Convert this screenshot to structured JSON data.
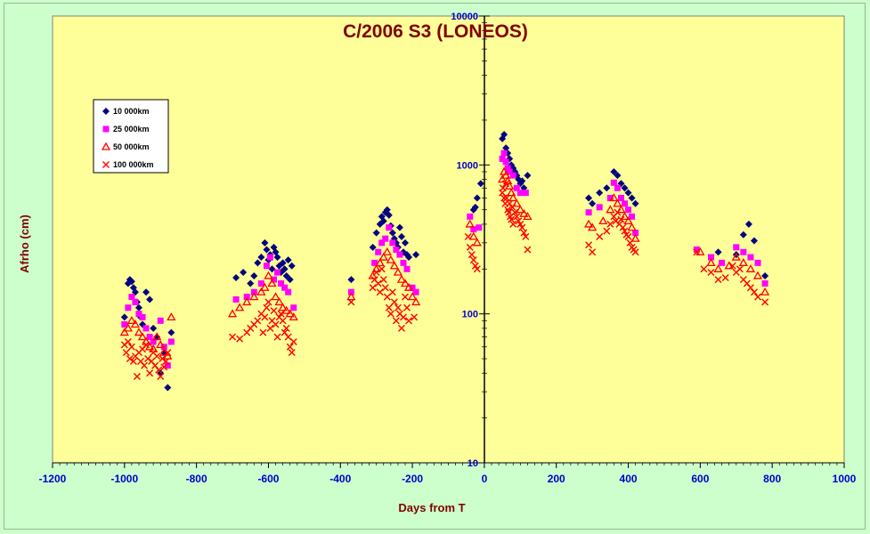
{
  "chart_data": {
    "type": "scatter",
    "title": "C/2006 S3 (LONEOS)",
    "xlabel": "Days from  T",
    "ylabel": "Afrho (cm)",
    "xlim": [
      -1200,
      1000
    ],
    "ylim": [
      10,
      10000
    ],
    "yscale": "log",
    "x_ticks": [
      -1200,
      -1000,
      -800,
      -600,
      -400,
      -200,
      0,
      200,
      400,
      600,
      800,
      1000
    ],
    "y_ticks": [
      10,
      100,
      1000,
      10000
    ],
    "legend_position": "top-left",
    "background": "#ffff99",
    "series": [
      {
        "name": "10 000km",
        "marker": "diamond",
        "color": "#000080",
        "x": [
          -1000,
          -990,
          -985,
          -980,
          -975,
          -970,
          -965,
          -960,
          -955,
          -950,
          -940,
          -930,
          -920,
          -910,
          -900,
          -890,
          -880,
          -870,
          -690,
          -670,
          -650,
          -640,
          -630,
          -620,
          -610,
          -605,
          -600,
          -595,
          -590,
          -585,
          -580,
          -575,
          -570,
          -565,
          -560,
          -555,
          -550,
          -545,
          -540,
          -535,
          -370,
          -310,
          -300,
          -290,
          -285,
          -280,
          -275,
          -270,
          -265,
          -260,
          -255,
          -250,
          -245,
          -240,
          -235,
          -230,
          -225,
          -220,
          -215,
          -210,
          -190,
          -30,
          -25,
          -20,
          -10,
          50,
          55,
          60,
          65,
          70,
          75,
          80,
          85,
          90,
          95,
          100,
          105,
          110,
          120,
          290,
          300,
          320,
          340,
          360,
          370,
          380,
          390,
          400,
          410,
          420,
          650,
          700,
          720,
          735,
          750,
          780
        ],
        "y": [
          95,
          160,
          170,
          165,
          150,
          140,
          120,
          110,
          95,
          85,
          140,
          125,
          80,
          70,
          40,
          55,
          32,
          75,
          175,
          190,
          160,
          180,
          220,
          240,
          300,
          270,
          230,
          250,
          200,
          280,
          260,
          240,
          210,
          190,
          220,
          200,
          180,
          230,
          170,
          210,
          170,
          280,
          350,
          400,
          450,
          420,
          480,
          500,
          460,
          390,
          350,
          320,
          300,
          280,
          380,
          330,
          260,
          300,
          250,
          240,
          250,
          500,
          520,
          600,
          750,
          1500,
          1600,
          1300,
          1200,
          1100,
          1000,
          950,
          900,
          850,
          800,
          750,
          780,
          700,
          850,
          600,
          550,
          650,
          700,
          900,
          850,
          750,
          700,
          650,
          600,
          550,
          260,
          250,
          340,
          400,
          310,
          180
        ]
      },
      {
        "name": "25 000km",
        "marker": "square",
        "color": "#ff00ff",
        "x": [
          -1000,
          -990,
          -980,
          -970,
          -960,
          -950,
          -940,
          -930,
          -920,
          -900,
          -890,
          -880,
          -870,
          -690,
          -660,
          -640,
          -620,
          -605,
          -595,
          -585,
          -575,
          -565,
          -555,
          -545,
          -530,
          -370,
          -305,
          -295,
          -285,
          -275,
          -265,
          -255,
          -245,
          -235,
          -225,
          -215,
          -200,
          -190,
          -40,
          -30,
          -15,
          50,
          55,
          60,
          65,
          70,
          80,
          90,
          100,
          115,
          290,
          320,
          350,
          360,
          370,
          380,
          390,
          400,
          410,
          420,
          590,
          630,
          660,
          700,
          720,
          740,
          760,
          780
        ],
        "y": [
          85,
          110,
          130,
          120,
          100,
          95,
          80,
          70,
          65,
          90,
          60,
          45,
          65,
          125,
          130,
          140,
          160,
          210,
          240,
          170,
          190,
          160,
          150,
          140,
          110,
          140,
          220,
          260,
          300,
          320,
          380,
          300,
          270,
          250,
          220,
          200,
          150,
          140,
          450,
          370,
          380,
          1100,
          1200,
          1050,
          950,
          900,
          850,
          700,
          650,
          650,
          480,
          520,
          600,
          760,
          700,
          600,
          550,
          500,
          450,
          350,
          270,
          240,
          220,
          280,
          260,
          240,
          220,
          160
        ]
      },
      {
        "name": "50 000km",
        "marker": "triangle",
        "color": "#ff0000",
        "x": [
          -1000,
          -990,
          -980,
          -970,
          -960,
          -950,
          -940,
          -930,
          -920,
          -910,
          -900,
          -890,
          -880,
          -870,
          -700,
          -680,
          -660,
          -640,
          -620,
          -610,
          -600,
          -590,
          -580,
          -570,
          -560,
          -550,
          -540,
          -530,
          -370,
          -310,
          -300,
          -290,
          -280,
          -270,
          -260,
          -250,
          -240,
          -230,
          -220,
          -210,
          -200,
          -190,
          -40,
          -30,
          -20,
          50,
          55,
          60,
          65,
          70,
          75,
          80,
          90,
          100,
          110,
          120,
          290,
          300,
          330,
          350,
          360,
          370,
          380,
          390,
          400,
          410,
          420,
          600,
          630,
          650,
          680,
          700,
          720,
          740,
          760,
          780
        ],
        "y": [
          75,
          80,
          90,
          85,
          75,
          70,
          65,
          60,
          58,
          70,
          62,
          55,
          52,
          95,
          100,
          110,
          120,
          130,
          140,
          150,
          180,
          160,
          130,
          120,
          110,
          105,
          100,
          95,
          130,
          180,
          200,
          220,
          240,
          260,
          230,
          210,
          190,
          170,
          160,
          150,
          130,
          120,
          400,
          330,
          300,
          800,
          900,
          850,
          780,
          720,
          650,
          600,
          550,
          500,
          470,
          450,
          400,
          380,
          420,
          500,
          600,
          550,
          500,
          450,
          420,
          380,
          320,
          260,
          220,
          200,
          210,
          240,
          220,
          200,
          180,
          140
        ]
      },
      {
        "name": "100 000km",
        "marker": "x",
        "color": "#ff0000",
        "x": [
          -1000,
          -995,
          -990,
          -985,
          -980,
          -975,
          -970,
          -965,
          -960,
          -955,
          -950,
          -945,
          -940,
          -935,
          -930,
          -925,
          -920,
          -915,
          -910,
          -905,
          -900,
          -895,
          -890,
          -885,
          -880,
          -700,
          -680,
          -660,
          -650,
          -640,
          -630,
          -620,
          -615,
          -610,
          -605,
          -600,
          -595,
          -590,
          -585,
          -580,
          -575,
          -570,
          -565,
          -560,
          -555,
          -550,
          -545,
          -540,
          -535,
          -530,
          -370,
          -310,
          -305,
          -300,
          -295,
          -290,
          -285,
          -280,
          -275,
          -270,
          -265,
          -260,
          -255,
          -250,
          -245,
          -240,
          -235,
          -230,
          -225,
          -220,
          -215,
          -210,
          -195,
          -45,
          -40,
          -35,
          -30,
          -25,
          -20,
          50,
          52,
          55,
          58,
          60,
          62,
          65,
          68,
          70,
          72,
          75,
          78,
          80,
          85,
          90,
          95,
          100,
          105,
          110,
          115,
          120,
          290,
          300,
          320,
          340,
          350,
          360,
          365,
          370,
          375,
          380,
          385,
          390,
          395,
          400,
          405,
          410,
          415,
          420,
          590,
          610,
          630,
          650,
          670,
          690,
          700,
          710,
          720,
          730,
          740,
          750,
          760,
          780
        ],
        "y": [
          62,
          55,
          65,
          50,
          60,
          48,
          52,
          38,
          55,
          48,
          58,
          45,
          62,
          50,
          40,
          48,
          55,
          45,
          52,
          42,
          38,
          50,
          44,
          48,
          55,
          70,
          68,
          75,
          80,
          85,
          90,
          100,
          75,
          95,
          110,
          120,
          80,
          90,
          105,
          85,
          70,
          95,
          100,
          90,
          75,
          80,
          70,
          60,
          55,
          65,
          120,
          150,
          170,
          190,
          160,
          140,
          200,
          170,
          150,
          130,
          110,
          100,
          140,
          120,
          90,
          110,
          100,
          80,
          95,
          130,
          110,
          90,
          95,
          330,
          280,
          250,
          230,
          210,
          200,
          650,
          700,
          600,
          550,
          750,
          600,
          500,
          480,
          550,
          450,
          430,
          520,
          400,
          480,
          450,
          420,
          400,
          380,
          350,
          330,
          270,
          290,
          260,
          330,
          360,
          400,
          450,
          420,
          480,
          400,
          430,
          380,
          360,
          340,
          330,
          300,
          280,
          270,
          260,
          260,
          200,
          190,
          170,
          175,
          210,
          190,
          200,
          170,
          160,
          150,
          140,
          130,
          120
        ]
      }
    ]
  }
}
